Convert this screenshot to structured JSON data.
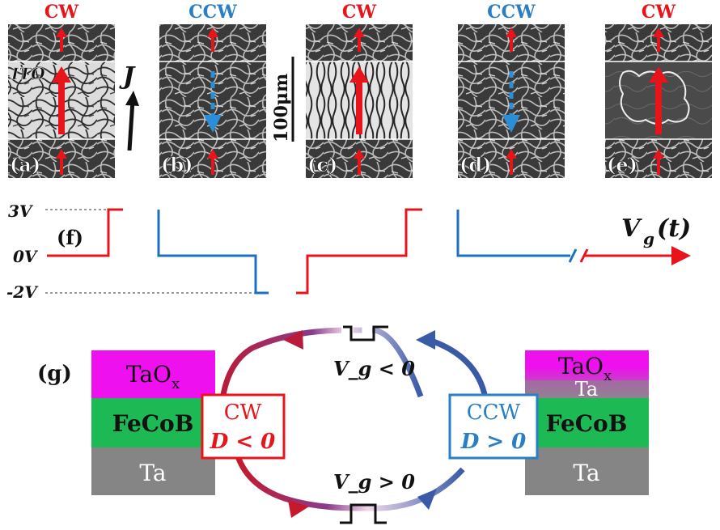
{
  "panels": [
    {
      "id": "a",
      "label": "(a)",
      "chirality": "CW",
      "center_label": "ITO",
      "center_current": "up",
      "style": "light"
    },
    {
      "id": "b",
      "label": "(b)",
      "chirality": "CCW",
      "center_label": "",
      "center_current": "down",
      "style": "dark"
    },
    {
      "id": "c",
      "label": "(c)",
      "chirality": "CW",
      "center_label": "",
      "center_current": "up",
      "style": "light"
    },
    {
      "id": "d",
      "label": "(d)",
      "chirality": "CCW",
      "center_label": "",
      "center_current": "down",
      "style": "dark"
    },
    {
      "id": "e",
      "label": "(e)",
      "chirality": "CW",
      "center_label": "",
      "center_current": "up",
      "style": "mixed"
    }
  ],
  "current_label": "J",
  "scale_bar_label": "100μm",
  "waveform": {
    "panel_label": "(f)",
    "levels": [
      "3V",
      "0V",
      "-2V"
    ],
    "signal_label_main": "V",
    "signal_label_sub": "g",
    "signal_label_arg": "(t)"
  },
  "cycle": {
    "panel_label": "(g)",
    "left_stack": {
      "top": "TaO",
      "top_sub": "x",
      "middle": "FeCoB",
      "bottom": "Ta"
    },
    "right_stack": {
      "top": "TaO",
      "top_sub": "x",
      "upper_mid": "Ta",
      "middle": "FeCoB",
      "bottom": "Ta"
    },
    "left_state": {
      "name": "CW",
      "condition": "D < 0"
    },
    "right_state": {
      "name": "CCW",
      "condition": "D > 0"
    },
    "top_transition": "V_g < 0",
    "bottom_transition": "V_g > 0"
  },
  "colors": {
    "cw": "#e8141c",
    "ccw": "#1f6fbf",
    "ccw_label": "#2a7fc4",
    "taox": "#ee10ee",
    "fecob": "#1db954",
    "ta": "#858585",
    "purple": "#8a3b8a"
  }
}
